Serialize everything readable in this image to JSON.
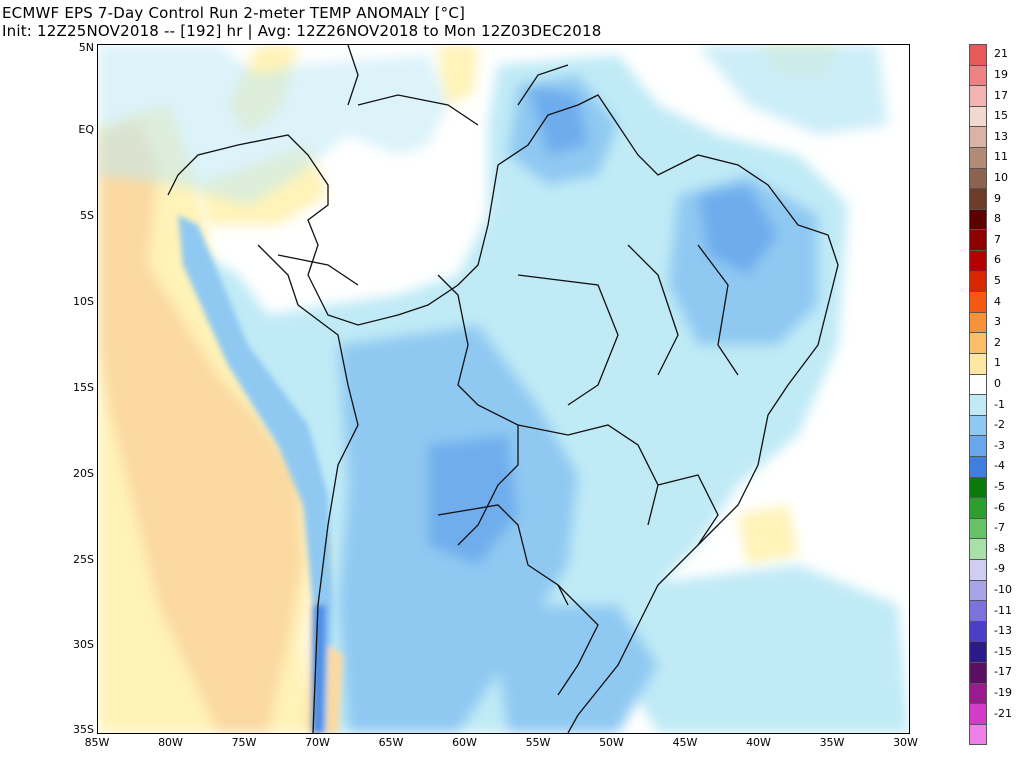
{
  "title": {
    "line1": "ECMWF EPS 7-Day Control Run 2-meter TEMP ANOMALY [°C]",
    "line2": "Init: 12Z25NOV2018 -- [192] hr | Avg: 12Z26NOV2018 to Mon 12Z03DEC2018"
  },
  "map": {
    "lat_labels": [
      "5N",
      "EQ",
      "5S",
      "10S",
      "15S",
      "20S",
      "25S",
      "30S",
      "35S"
    ],
    "lon_labels": [
      "85W",
      "80W",
      "75W",
      "70W",
      "65W",
      "60W",
      "55W",
      "50W",
      "45W",
      "40W",
      "35W",
      "30W"
    ]
  },
  "colorbar": {
    "labels": [
      "21",
      "19",
      "17",
      "15",
      "13",
      "11",
      "10",
      "9",
      "8",
      "7",
      "6",
      "5",
      "4",
      "3",
      "2",
      "1",
      "0",
      "-1",
      "-2",
      "-3",
      "-4",
      "-5",
      "-6",
      "-7",
      "-8",
      "-9",
      "-10",
      "-11",
      "-13",
      "-15",
      "-17",
      "-19",
      "-21"
    ],
    "colors": [
      "#e85a5a",
      "#ee8181",
      "#f4b3b3",
      "#f2d9cf",
      "#d9b3a3",
      "#b38a75",
      "#8c6350",
      "#6b3d2a",
      "#5c0000",
      "#8b0000",
      "#b30000",
      "#d92600",
      "#f25a14",
      "#f7923a",
      "#fbbf6a",
      "#fde7a5",
      "#ffffff",
      "#bfeaf6",
      "#8fc9f2",
      "#6aa8ec",
      "#3f7fe0",
      "#0a7a0a",
      "#2e9e2e",
      "#66c266",
      "#a8e0a8",
      "#d0cdf2",
      "#a9a3ea",
      "#7d72dc",
      "#4c3fc7",
      "#2a1a8a",
      "#5a1060",
      "#9a1a90",
      "#d23cc8",
      "#f080e8"
    ]
  }
}
